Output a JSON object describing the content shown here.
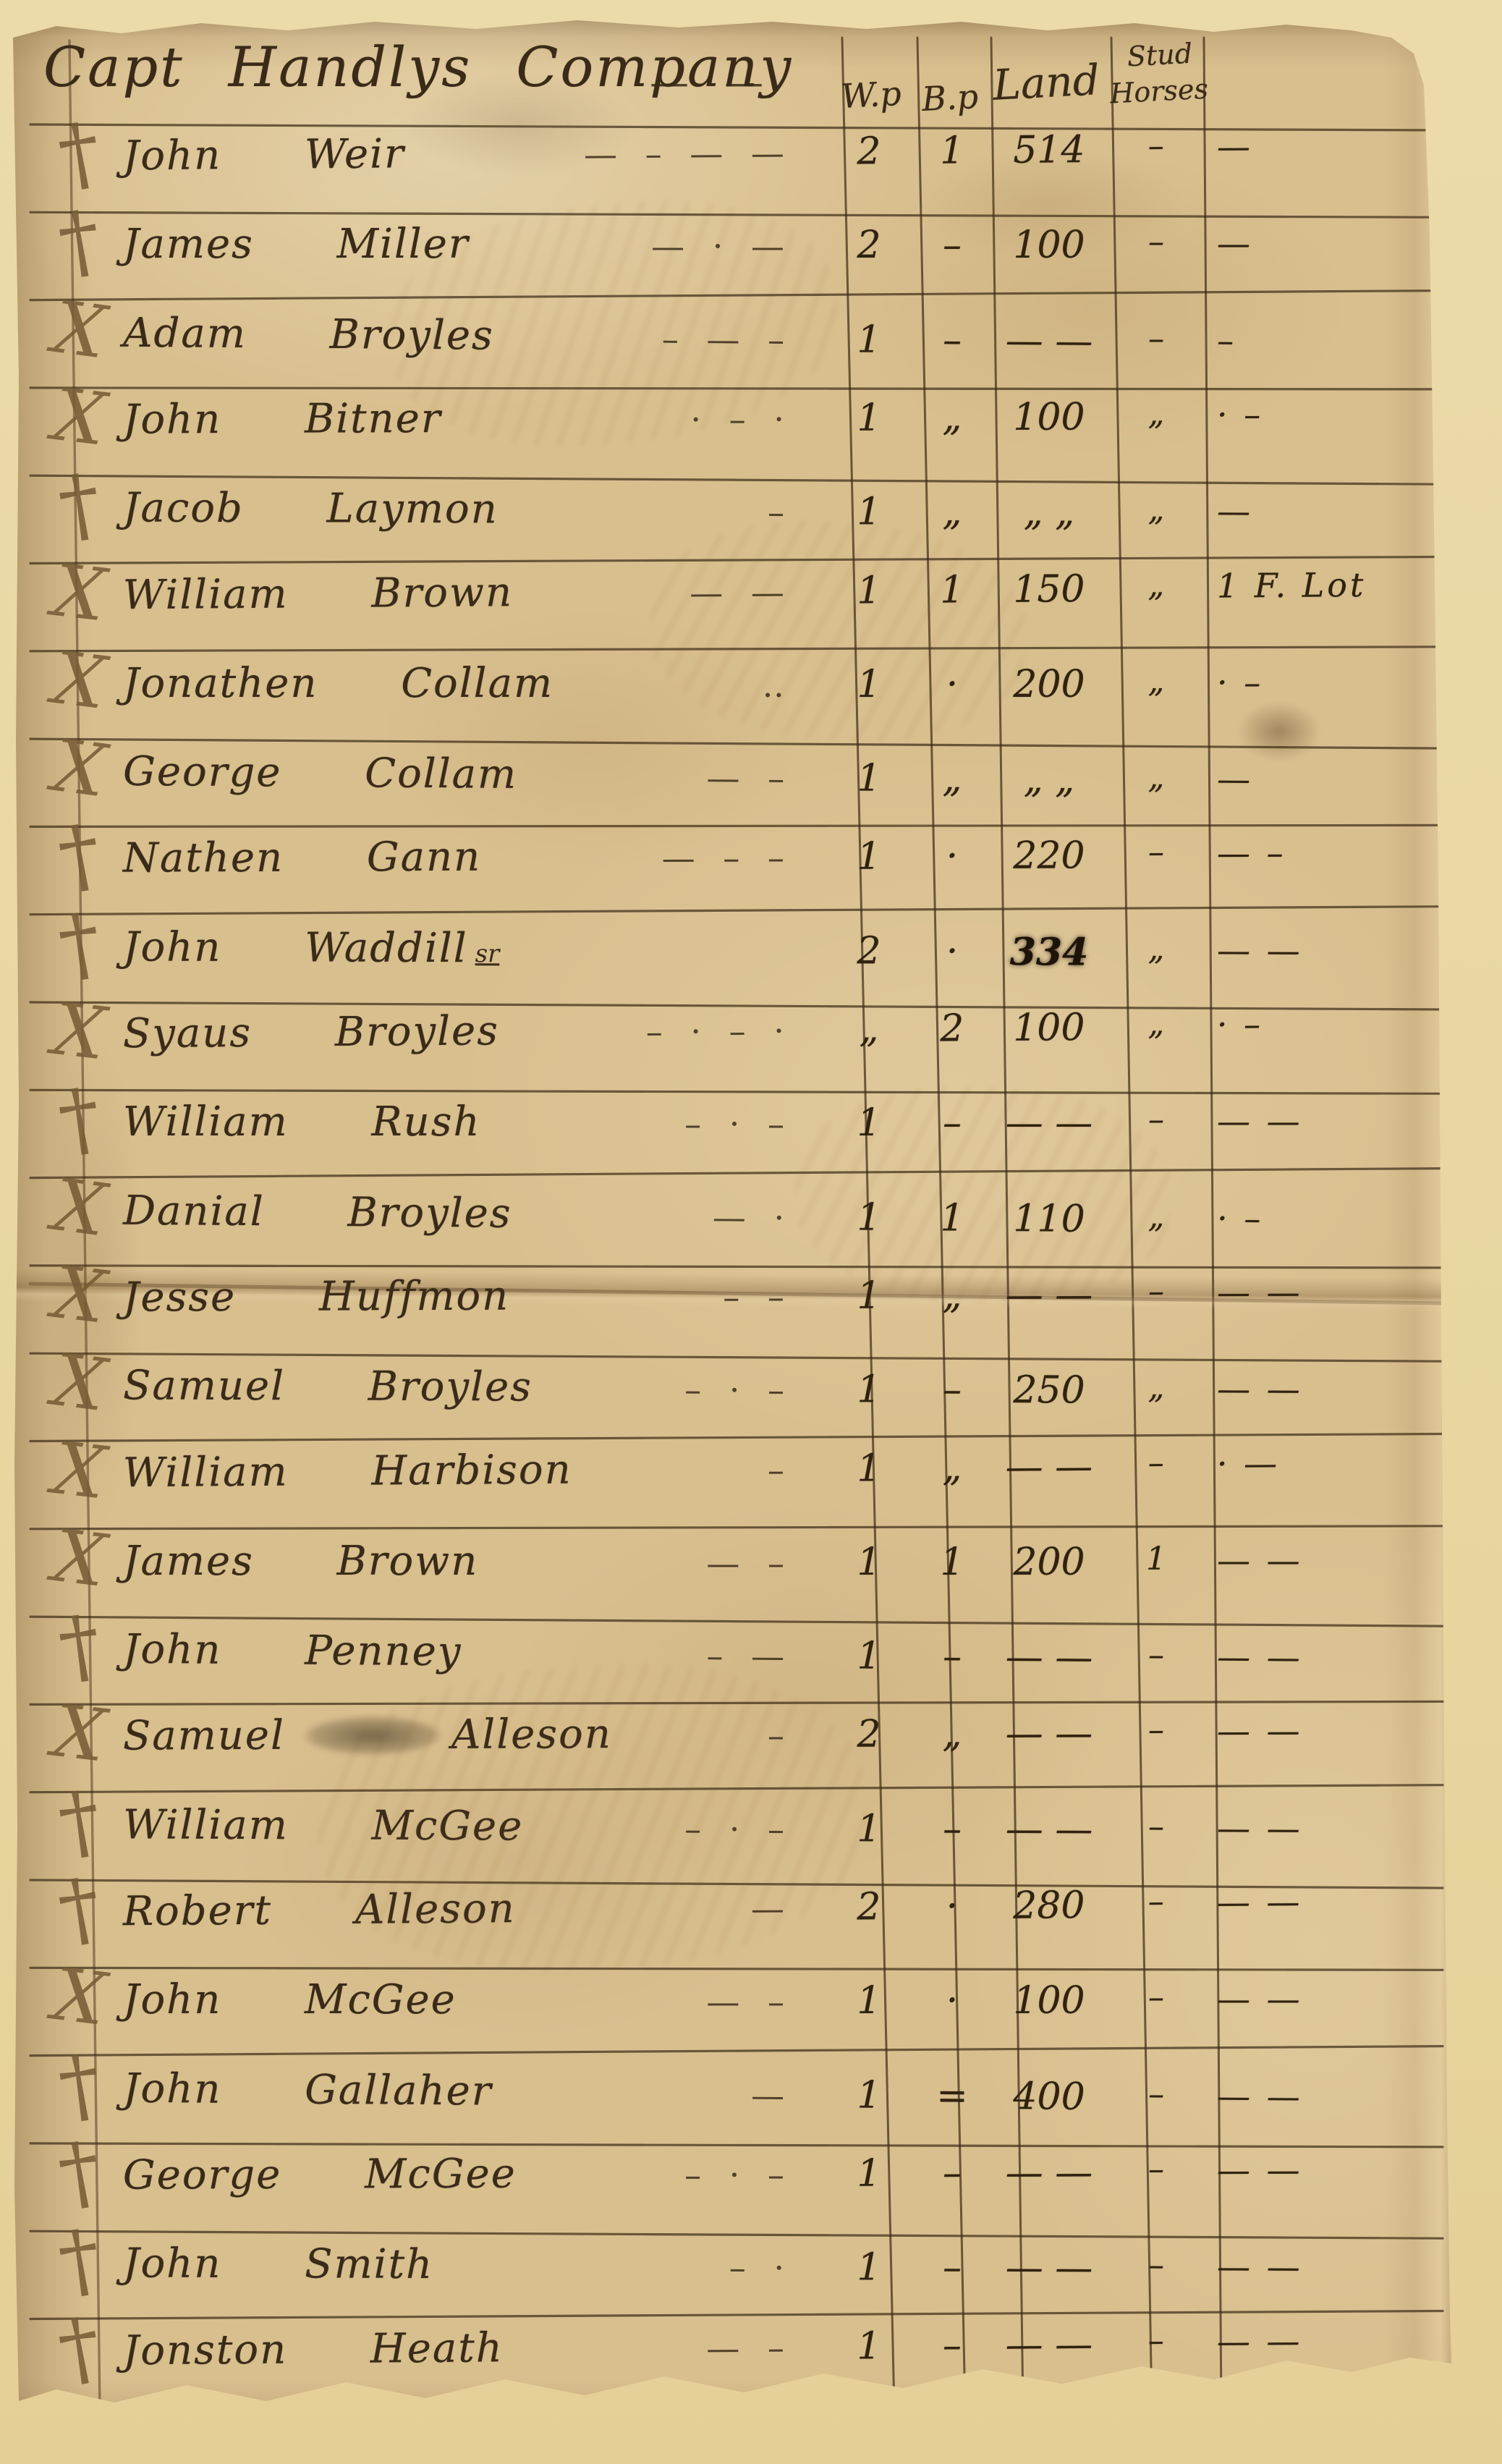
{
  "header": {
    "title": "Capt Handlys Company",
    "title_trail": "— —",
    "columns": {
      "wp": "W.p",
      "bp": "B.p",
      "land": "Land",
      "stud_line1": "Stud",
      "stud_line2": "Horses"
    }
  },
  "sheet": {
    "marks": {
      "x": "X",
      "cross": "†"
    },
    "rows": [
      {
        "mark": "cross",
        "name": "John Weir",
        "trail": "— – — —",
        "wp": "2",
        "bp": "1",
        "land": "514",
        "stud": "–",
        "extra": "—"
      },
      {
        "mark": "cross",
        "name": "James Miller",
        "trail": "— · —",
        "wp": "2",
        "bp": "–",
        "land": "100",
        "stud": "–",
        "extra": "—"
      },
      {
        "mark": "x",
        "name": "Adam Broyles",
        "trail": "– — –",
        "wp": "1",
        "bp": "–",
        "land": "— —",
        "stud": "–",
        "extra": "–"
      },
      {
        "mark": "x",
        "name": "John Bitner",
        "trail": "· – ·",
        "wp": "1",
        "bp": "„",
        "land": "100",
        "stud": "„",
        "extra": "· –"
      },
      {
        "mark": "cross",
        "name": "Jacob Laymon",
        "trail": "–",
        "wp": "1",
        "bp": "„",
        "land": "„ „",
        "stud": "„",
        "extra": "—"
      },
      {
        "mark": "x",
        "name": "William Brown",
        "trail": "— —",
        "wp": "1",
        "bp": "1",
        "land": "150",
        "stud": "„",
        "extra": "1 F. Lot"
      },
      {
        "mark": "x",
        "name": "Jonathen Collam",
        "trail": "‥",
        "wp": "1",
        "bp": "·",
        "land": "200",
        "stud": "„",
        "extra": "· –"
      },
      {
        "mark": "x",
        "name": "George Collam",
        "trail": "— –",
        "wp": "1",
        "bp": "„",
        "land": "„ „",
        "stud": "„",
        "extra": "—"
      },
      {
        "mark": "cross",
        "name": "Nathen Gann",
        "trail": "— – –",
        "wp": "1",
        "bp": "·",
        "land": "220",
        "stud": "–",
        "extra": "— –"
      },
      {
        "mark": "cross",
        "name": "John Waddill",
        "suffix": "sr",
        "trail": "",
        "wp": "2",
        "bp": "·",
        "land": "334",
        "land_heavy": true,
        "stud": "„",
        "extra": "— —"
      },
      {
        "mark": "x",
        "name": "Syaus Broyles",
        "trail": "– · – ·",
        "wp": "„",
        "bp": "2",
        "land": "100",
        "stud": "„",
        "extra": "· –"
      },
      {
        "mark": "cross",
        "name": "William Rush",
        "trail": "– · –",
        "wp": "1",
        "bp": "–",
        "land": "— —",
        "stud": "–",
        "extra": "— —"
      },
      {
        "mark": "x",
        "name": "Danial Broyles",
        "trail": "— ·",
        "wp": "1",
        "bp": "1",
        "land": "110",
        "stud": "„",
        "extra": "· –"
      },
      {
        "mark": "x",
        "name": "Jesse Huffmon",
        "trail": "– –",
        "wp": "1",
        "bp": "„",
        "land": "— —",
        "stud": "–",
        "extra": "— —"
      },
      {
        "mark": "x",
        "name": "Samuel Broyles",
        "trail": "– · –",
        "wp": "1",
        "bp": "–",
        "land": "250",
        "stud": "„",
        "extra": "— —"
      },
      {
        "mark": "x",
        "name": "William Harbison",
        "trail": "–",
        "wp": "1",
        "bp": "„",
        "land": "— —",
        "stud": "–",
        "extra": "· —"
      },
      {
        "mark": "x",
        "name": "James Brown",
        "trail": "— –",
        "wp": "1",
        "bp": "1",
        "land": "200",
        "stud": "1",
        "extra": "— —"
      },
      {
        "mark": "cross",
        "name": "John Penney",
        "trail": "– —",
        "wp": "1",
        "bp": "–",
        "land": "— —",
        "stud": "–",
        "extra": "— —"
      },
      {
        "mark": "x",
        "name": "Samuel",
        "name2": "Alleson",
        "smudge": true,
        "trail": "–",
        "wp": "2",
        "bp": "„",
        "land": "— —",
        "stud": "–",
        "extra": "— —"
      },
      {
        "mark": "cross",
        "name": "William McGee",
        "trail": "– · –",
        "wp": "1",
        "bp": "–",
        "land": "— —",
        "stud": "–",
        "extra": "— —"
      },
      {
        "mark": "cross",
        "name": "Robert Alleson",
        "trail": "—",
        "wp": "2",
        "bp": "·",
        "land": "280",
        "stud": "–",
        "extra": "— —"
      },
      {
        "mark": "x",
        "name": "John McGee",
        "trail": "— –",
        "wp": "1",
        "bp": "·",
        "land": "100",
        "stud": "–",
        "extra": "— —"
      },
      {
        "mark": "cross",
        "name": "John Gallaher",
        "trail": "—",
        "wp": "1",
        "bp": "=",
        "land": "400",
        "stud": "–",
        "extra": "— —"
      },
      {
        "mark": "cross",
        "name": "George McGee",
        "trail": "– · –",
        "wp": "1",
        "bp": "–",
        "land": "— —",
        "stud": "–",
        "extra": "— —"
      },
      {
        "mark": "cross",
        "name": "John Smith",
        "trail": "– ·",
        "wp": "1",
        "bp": "–",
        "land": "— —",
        "stud": "–",
        "extra": "— —"
      },
      {
        "mark": "cross",
        "name": "Jonston Heath",
        "trail": "— –",
        "wp": "1",
        "bp": "–",
        "land": "— —",
        "stud": "–",
        "extra": "— —"
      }
    ]
  },
  "colors": {
    "paper": "#d8bf8e",
    "backing": "#e9d7a4",
    "ink": "#3a2a18",
    "tally_mark": "#765c36",
    "table_line": "rgba(62,44,24,0.72)",
    "margin_line": "rgba(96,72,44,0.60)"
  }
}
